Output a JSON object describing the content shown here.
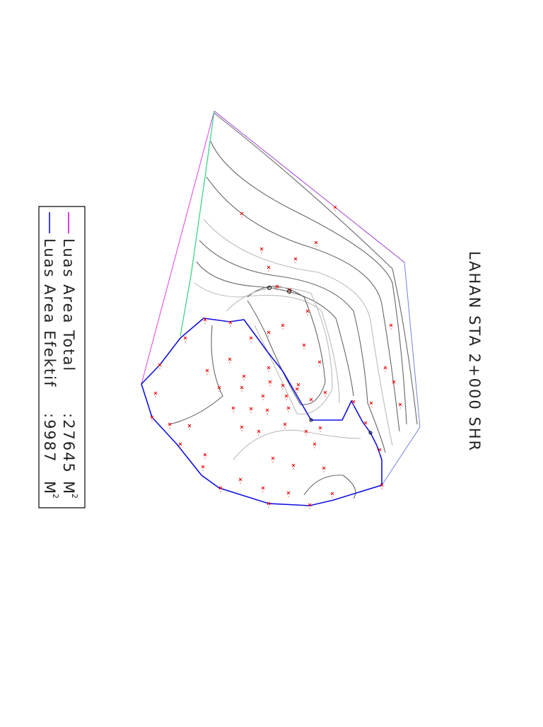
{
  "title": "LAHAN STA 2+000 SHR",
  "legend": [
    {
      "label": "Luas Area Total",
      "value": ":27645",
      "unit": "M",
      "sup": "2"
    },
    {
      "label": "Luas Area Efektif",
      "value": ":9987",
      "unit": "M",
      "sup": "2"
    }
  ]
}
